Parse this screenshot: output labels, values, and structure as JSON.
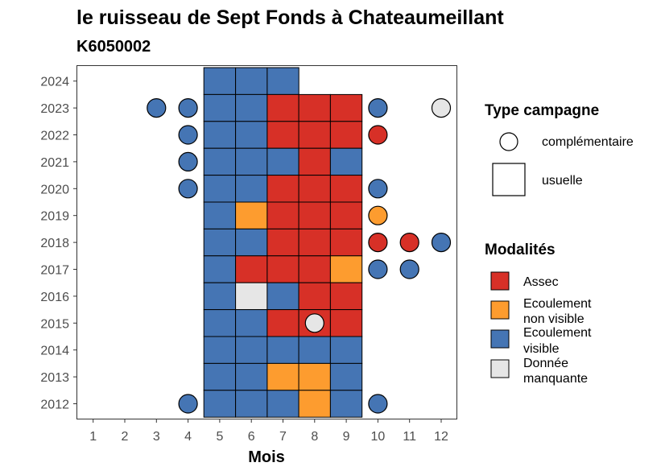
{
  "chart_data": {
    "type": "heatmap",
    "title": "le ruisseau de Sept Fonds à Chateaumeillant",
    "subtitle": "K6050002",
    "xlabel": "Mois",
    "ylabel": "",
    "x_ticks": [
      "1",
      "2",
      "3",
      "4",
      "5",
      "6",
      "7",
      "8",
      "9",
      "10",
      "11",
      "12"
    ],
    "y_ticks": [
      "2012",
      "2013",
      "2014",
      "2015",
      "2016",
      "2017",
      "2018",
      "2019",
      "2020",
      "2021",
      "2022",
      "2023",
      "2024"
    ],
    "colors": {
      "assec": "#d73027",
      "ecoulement_non_visible": "#fd9c2f",
      "ecoulement_visible": "#4575b4",
      "donnee_manquante": "#e6e6e6"
    },
    "legend_type": {
      "title": "Type campagne",
      "items": [
        {
          "shape": "circle",
          "label": "complémentaire"
        },
        {
          "shape": "square",
          "label": "usuelle"
        }
      ]
    },
    "legend_modalites": {
      "title": "Modalités",
      "items": [
        {
          "key": "assec",
          "line1": "Assec",
          "line2": ""
        },
        {
          "key": "ecoulement_non_visible",
          "line1": "Ecoulement",
          "line2": "non visible"
        },
        {
          "key": "ecoulement_visible",
          "line1": "Ecoulement",
          "line2": "visible"
        },
        {
          "key": "donnee_manquante",
          "line1": "Donnée",
          "line2": "manquante"
        }
      ]
    },
    "usuelle": [
      {
        "year": 2024,
        "month": 5,
        "value": "ecoulement_visible"
      },
      {
        "year": 2024,
        "month": 6,
        "value": "ecoulement_visible"
      },
      {
        "year": 2024,
        "month": 7,
        "value": "ecoulement_visible"
      },
      {
        "year": 2023,
        "month": 5,
        "value": "ecoulement_visible"
      },
      {
        "year": 2023,
        "month": 6,
        "value": "ecoulement_visible"
      },
      {
        "year": 2023,
        "month": 7,
        "value": "assec"
      },
      {
        "year": 2023,
        "month": 8,
        "value": "assec"
      },
      {
        "year": 2023,
        "month": 9,
        "value": "assec"
      },
      {
        "year": 2022,
        "month": 5,
        "value": "ecoulement_visible"
      },
      {
        "year": 2022,
        "month": 6,
        "value": "ecoulement_visible"
      },
      {
        "year": 2022,
        "month": 7,
        "value": "assec"
      },
      {
        "year": 2022,
        "month": 8,
        "value": "assec"
      },
      {
        "year": 2022,
        "month": 9,
        "value": "assec"
      },
      {
        "year": 2021,
        "month": 5,
        "value": "ecoulement_visible"
      },
      {
        "year": 2021,
        "month": 6,
        "value": "ecoulement_visible"
      },
      {
        "year": 2021,
        "month": 7,
        "value": "ecoulement_visible"
      },
      {
        "year": 2021,
        "month": 8,
        "value": "assec"
      },
      {
        "year": 2021,
        "month": 9,
        "value": "ecoulement_visible"
      },
      {
        "year": 2020,
        "month": 5,
        "value": "ecoulement_visible"
      },
      {
        "year": 2020,
        "month": 6,
        "value": "ecoulement_visible"
      },
      {
        "year": 2020,
        "month": 7,
        "value": "assec"
      },
      {
        "year": 2020,
        "month": 8,
        "value": "assec"
      },
      {
        "year": 2020,
        "month": 9,
        "value": "assec"
      },
      {
        "year": 2019,
        "month": 5,
        "value": "ecoulement_visible"
      },
      {
        "year": 2019,
        "month": 6,
        "value": "ecoulement_non_visible"
      },
      {
        "year": 2019,
        "month": 7,
        "value": "assec"
      },
      {
        "year": 2019,
        "month": 8,
        "value": "assec"
      },
      {
        "year": 2019,
        "month": 9,
        "value": "assec"
      },
      {
        "year": 2018,
        "month": 5,
        "value": "ecoulement_visible"
      },
      {
        "year": 2018,
        "month": 6,
        "value": "ecoulement_visible"
      },
      {
        "year": 2018,
        "month": 7,
        "value": "assec"
      },
      {
        "year": 2018,
        "month": 8,
        "value": "assec"
      },
      {
        "year": 2018,
        "month": 9,
        "value": "assec"
      },
      {
        "year": 2017,
        "month": 5,
        "value": "ecoulement_visible"
      },
      {
        "year": 2017,
        "month": 6,
        "value": "assec"
      },
      {
        "year": 2017,
        "month": 7,
        "value": "assec"
      },
      {
        "year": 2017,
        "month": 8,
        "value": "assec"
      },
      {
        "year": 2017,
        "month": 9,
        "value": "ecoulement_non_visible"
      },
      {
        "year": 2016,
        "month": 5,
        "value": "ecoulement_visible"
      },
      {
        "year": 2016,
        "month": 6,
        "value": "donnee_manquante"
      },
      {
        "year": 2016,
        "month": 7,
        "value": "ecoulement_visible"
      },
      {
        "year": 2016,
        "month": 8,
        "value": "assec"
      },
      {
        "year": 2016,
        "month": 9,
        "value": "assec"
      },
      {
        "year": 2015,
        "month": 5,
        "value": "ecoulement_visible"
      },
      {
        "year": 2015,
        "month": 6,
        "value": "ecoulement_visible"
      },
      {
        "year": 2015,
        "month": 7,
        "value": "assec"
      },
      {
        "year": 2015,
        "month": 8,
        "value": "assec"
      },
      {
        "year": 2015,
        "month": 9,
        "value": "assec"
      },
      {
        "year": 2014,
        "month": 5,
        "value": "ecoulement_visible"
      },
      {
        "year": 2014,
        "month": 6,
        "value": "ecoulement_visible"
      },
      {
        "year": 2014,
        "month": 7,
        "value": "ecoulement_visible"
      },
      {
        "year": 2014,
        "month": 8,
        "value": "ecoulement_visible"
      },
      {
        "year": 2014,
        "month": 9,
        "value": "ecoulement_visible"
      },
      {
        "year": 2013,
        "month": 5,
        "value": "ecoulement_visible"
      },
      {
        "year": 2013,
        "month": 6,
        "value": "ecoulement_visible"
      },
      {
        "year": 2013,
        "month": 7,
        "value": "ecoulement_non_visible"
      },
      {
        "year": 2013,
        "month": 8,
        "value": "ecoulement_non_visible"
      },
      {
        "year": 2013,
        "month": 9,
        "value": "ecoulement_visible"
      },
      {
        "year": 2012,
        "month": 5,
        "value": "ecoulement_visible"
      },
      {
        "year": 2012,
        "month": 6,
        "value": "ecoulement_visible"
      },
      {
        "year": 2012,
        "month": 7,
        "value": "ecoulement_visible"
      },
      {
        "year": 2012,
        "month": 8,
        "value": "ecoulement_non_visible"
      },
      {
        "year": 2012,
        "month": 9,
        "value": "ecoulement_visible"
      }
    ],
    "complementaire": [
      {
        "year": 2023,
        "month": 3,
        "value": "ecoulement_visible"
      },
      {
        "year": 2023,
        "month": 4,
        "value": "ecoulement_visible"
      },
      {
        "year": 2023,
        "month": 10,
        "value": "ecoulement_visible"
      },
      {
        "year": 2023,
        "month": 12,
        "value": "donnee_manquante"
      },
      {
        "year": 2022,
        "month": 4,
        "value": "ecoulement_visible"
      },
      {
        "year": 2022,
        "month": 10,
        "value": "assec"
      },
      {
        "year": 2021,
        "month": 4,
        "value": "ecoulement_visible"
      },
      {
        "year": 2020,
        "month": 4,
        "value": "ecoulement_visible"
      },
      {
        "year": 2020,
        "month": 10,
        "value": "ecoulement_visible"
      },
      {
        "year": 2019,
        "month": 10,
        "value": "ecoulement_non_visible"
      },
      {
        "year": 2018,
        "month": 10,
        "value": "assec"
      },
      {
        "year": 2018,
        "month": 11,
        "value": "assec"
      },
      {
        "year": 2018,
        "month": 12,
        "value": "ecoulement_visible"
      },
      {
        "year": 2017,
        "month": 10,
        "value": "ecoulement_visible"
      },
      {
        "year": 2017,
        "month": 11,
        "value": "ecoulement_visible"
      },
      {
        "year": 2015,
        "month": 8,
        "value": "donnee_manquante"
      },
      {
        "year": 2012,
        "month": 4,
        "value": "ecoulement_visible"
      },
      {
        "year": 2012,
        "month": 10,
        "value": "ecoulement_visible"
      }
    ]
  }
}
